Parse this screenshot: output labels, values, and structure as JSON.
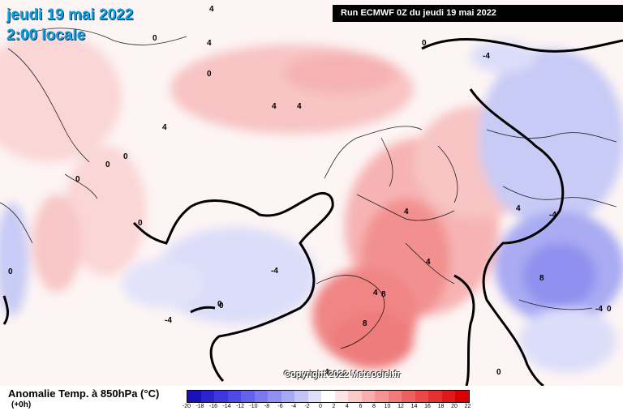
{
  "header": {
    "date_text": "jeudi 19 mai 2022",
    "time_text": "2:00 locale",
    "run_text": "Run ECMWF 0Z du jeudi 19 mai 2022"
  },
  "map": {
    "copyright": "Copyright 2022 Meteociel.fr",
    "contour_labels": [
      "4",
      "0",
      "4",
      "0",
      "4",
      "0",
      "4",
      "0",
      "0",
      "0",
      "-4",
      "0",
      "0",
      "-4",
      "4",
      "-4",
      "4",
      "8",
      "8",
      "4",
      "0",
      "-4",
      "8",
      "4",
      "0",
      "-4",
      "0",
      "4",
      "0",
      "4"
    ]
  },
  "footer": {
    "variable_title": "Anomalie Temp. à 850hPa (°C)",
    "lead_time": "(+0h)"
  },
  "legend": {
    "ticks": [
      "-20",
      "-18",
      "-16",
      "-14",
      "-12",
      "-10",
      "-8",
      "-6",
      "-4",
      "-2",
      "0",
      "2",
      "4",
      "6",
      "8",
      "10",
      "12",
      "14",
      "16",
      "18",
      "20",
      "22"
    ],
    "colors": [
      "#1a10b8",
      "#2c22d0",
      "#3f36e0",
      "#5248e8",
      "#6560ee",
      "#7b78f0",
      "#9190f2",
      "#a8a9f4",
      "#c2c4f7",
      "#dddff9",
      "#ffffff",
      "#fde3e3",
      "#fcc9c9",
      "#f9aeae",
      "#f69494",
      "#f27a7a",
      "#ee6161",
      "#ea4848",
      "#e53030",
      "#e01818",
      "#d80000"
    ]
  }
}
